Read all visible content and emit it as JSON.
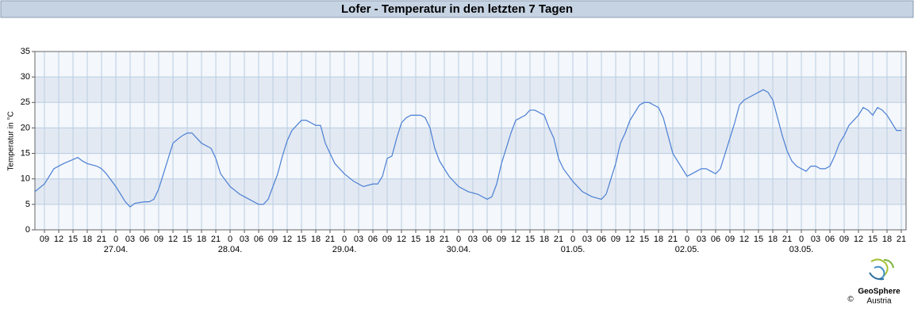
{
  "header": {
    "title": "Lofer - Temperatur in den letzten 7 Tagen"
  },
  "chart_data": {
    "type": "line",
    "ylabel": "Temperatur in °C",
    "x": [
      7,
      9,
      10,
      11,
      13,
      15,
      16,
      17,
      18,
      20,
      21,
      22,
      24,
      25,
      26,
      27,
      28,
      30,
      31,
      32,
      33,
      34,
      35,
      36,
      37,
      38,
      39,
      40,
      41,
      42,
      44,
      45,
      46,
      48,
      50,
      52,
      54,
      55,
      56,
      57,
      58,
      59,
      60,
      61,
      62,
      63,
      64,
      65,
      66,
      67,
      68,
      69,
      70,
      72,
      74,
      76,
      78,
      79,
      80,
      81,
      82,
      83,
      84,
      85,
      86,
      88,
      89,
      90,
      91,
      92,
      94,
      96,
      98,
      100,
      102,
      103,
      104,
      105,
      106,
      107,
      108,
      110,
      111,
      112,
      114,
      115,
      116,
      117,
      118,
      120,
      122,
      124,
      126,
      127,
      128,
      129,
      130,
      131,
      132,
      133,
      134,
      135,
      136,
      137,
      138,
      139,
      140,
      141,
      142,
      143,
      144,
      145,
      146,
      147,
      148,
      149,
      150,
      151,
      152,
      153,
      154,
      155,
      156,
      157,
      158,
      159,
      160,
      161,
      162,
      163,
      164,
      165,
      166,
      167,
      168,
      169,
      170,
      171,
      172,
      173,
      174,
      175,
      176,
      177,
      178,
      179,
      180,
      181,
      182,
      183,
      184,
      185,
      186,
      187,
      188,
      189
    ],
    "series": [
      {
        "name": "Temperatur",
        "color": "#4a7fd4",
        "values": [
          7.5,
          9,
          10.5,
          12,
          13,
          13.8,
          14.2,
          13.5,
          13,
          12.5,
          12,
          11,
          8.5,
          7,
          5.5,
          4.5,
          5.2,
          5.5,
          5.5,
          6,
          8,
          11,
          14,
          17,
          17.8,
          18.5,
          19,
          19,
          18,
          17,
          16,
          14,
          11,
          8.5,
          7,
          6,
          5,
          5,
          6,
          8.5,
          11,
          14.5,
          17.5,
          19.5,
          20.5,
          21.5,
          21.5,
          21,
          20.5,
          20.5,
          17,
          15,
          13,
          11,
          9.5,
          8.5,
          9,
          9,
          10.5,
          14,
          14.5,
          18,
          21,
          22,
          22.5,
          22.5,
          22,
          20,
          16,
          13.5,
          10.5,
          8.5,
          7.5,
          7,
          6,
          6.5,
          9,
          13,
          16,
          19,
          21.5,
          22.5,
          23.5,
          23.5,
          22.5,
          20,
          18,
          14,
          12,
          9.5,
          7.5,
          6.5,
          6,
          7,
          10,
          13,
          17,
          19,
          21.5,
          23,
          24.5,
          25,
          25,
          24.5,
          24,
          22,
          18.5,
          15,
          13.5,
          12,
          10.5,
          11,
          11.5,
          12,
          12,
          11.5,
          11,
          12,
          15,
          18,
          21,
          24.5,
          25.5,
          26,
          26.5,
          27,
          27.5,
          27,
          25.5,
          22,
          18.5,
          15.5,
          13.5,
          12.5,
          12,
          11.5,
          12.5,
          12.5,
          12,
          12,
          12.5,
          14.5,
          17,
          18.5,
          20.5,
          21.5,
          22.5,
          24,
          23.5,
          22.5,
          24,
          23.5,
          22.5,
          21,
          19.5,
          19.5
        ]
      }
    ],
    "xlim": [
      7,
      190
    ],
    "ylim": [
      0,
      35
    ],
    "yticks": [
      0,
      5,
      10,
      15,
      20,
      25,
      30,
      35
    ],
    "xticks": [
      {
        "value": 9,
        "label": "09"
      },
      12,
      15,
      18,
      21,
      {
        "value": 24,
        "label": "0"
      },
      {
        "value": 27,
        "label": "03"
      },
      {
        "value": 30,
        "label": "06"
      },
      {
        "value": 33,
        "label": "09"
      },
      {
        "value": 36,
        "label": "12"
      },
      {
        "value": 39,
        "label": "15"
      },
      {
        "value": 42,
        "label": "18"
      },
      {
        "value": 45,
        "label": "21"
      },
      {
        "value": 48,
        "label": "0"
      },
      {
        "value": 51,
        "label": "03"
      },
      {
        "value": 54,
        "label": "06"
      },
      {
        "value": 57,
        "label": "09"
      },
      {
        "value": 60,
        "label": "12"
      },
      {
        "value": 63,
        "label": "15"
      },
      {
        "value": 66,
        "label": "18"
      },
      {
        "value": 69,
        "label": "21"
      },
      {
        "value": 72,
        "label": "0"
      },
      {
        "value": 75,
        "label": "03"
      },
      {
        "value": 78,
        "label": "06"
      },
      {
        "value": 81,
        "label": "09"
      },
      {
        "value": 84,
        "label": "12"
      },
      {
        "value": 87,
        "label": "15"
      },
      {
        "value": 90,
        "label": "18"
      },
      {
        "value": 93,
        "label": "21"
      },
      {
        "value": 96,
        "label": "0"
      },
      {
        "value": 99,
        "label": "03"
      },
      {
        "value": 102,
        "label": "06"
      },
      {
        "value": 105,
        "label": "09"
      },
      {
        "value": 108,
        "label": "12"
      },
      {
        "value": 111,
        "label": "15"
      },
      {
        "value": 114,
        "label": "18"
      },
      {
        "value": 117,
        "label": "21"
      },
      {
        "value": 120,
        "label": "0"
      },
      {
        "value": 123,
        "label": "03"
      },
      {
        "value": 126,
        "label": "06"
      },
      {
        "value": 129,
        "label": "09"
      },
      {
        "value": 132,
        "label": "12"
      },
      {
        "value": 135,
        "label": "15"
      },
      {
        "value": 138,
        "label": "18"
      },
      {
        "value": 141,
        "label": "21"
      },
      {
        "value": 144,
        "label": "0"
      },
      {
        "value": 147,
        "label": "03"
      },
      {
        "value": 150,
        "label": "06"
      },
      {
        "value": 153,
        "label": "09"
      },
      {
        "value": 156,
        "label": "12"
      },
      {
        "value": 159,
        "label": "15"
      },
      {
        "value": 162,
        "label": "18"
      },
      {
        "value": 165,
        "label": "21"
      },
      {
        "value": 168,
        "label": "0"
      },
      {
        "value": 171,
        "label": "03"
      },
      {
        "value": 174,
        "label": "06"
      },
      {
        "value": 177,
        "label": "09"
      },
      {
        "value": 180,
        "label": "12"
      },
      {
        "value": 183,
        "label": "15"
      },
      {
        "value": 186,
        "label": "18"
      },
      {
        "value": 189,
        "label": "21"
      }
    ],
    "date_labels": [
      {
        "value": 24,
        "label": "27.04."
      },
      {
        "value": 48,
        "label": "28.04."
      },
      {
        "value": 72,
        "label": "29.04."
      },
      {
        "value": 96,
        "label": "30.04."
      },
      {
        "value": 120,
        "label": "01.05."
      },
      {
        "value": 144,
        "label": "02.05."
      },
      {
        "value": 168,
        "label": "03.05."
      }
    ],
    "grid": true
  },
  "logo": {
    "name": "GeoSphere",
    "sub": "Austria",
    "copyright": "©"
  }
}
